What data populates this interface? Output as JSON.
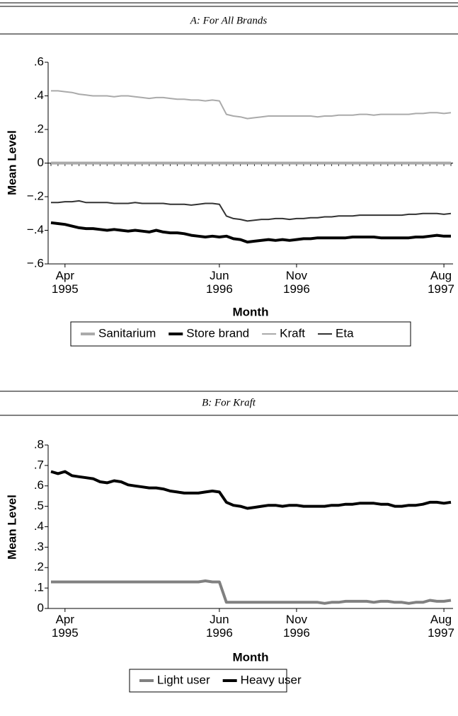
{
  "chart_data": [
    {
      "type": "line",
      "panel_title": "A: For All Brands",
      "y_label": "Mean Level",
      "x_label": "Month",
      "categories": [
        null,
        null,
        "Apr 1995",
        null,
        null,
        null,
        null,
        null,
        null,
        null,
        null,
        null,
        null,
        null,
        null,
        null,
        null,
        null,
        null,
        null,
        null,
        null,
        null,
        null,
        "Jun 1996",
        null,
        null,
        null,
        null,
        null,
        null,
        null,
        null,
        null,
        null,
        "Nov 1996",
        null,
        null,
        null,
        null,
        null,
        null,
        null,
        null,
        null,
        null,
        null,
        null,
        null,
        null,
        null,
        null,
        null,
        null,
        null,
        null,
        "Aug 1997",
        null
      ],
      "ylim": [
        -0.6,
        0.6
      ],
      "yticks": [
        {
          "value": 0.6,
          "label": ".6"
        },
        {
          "value": 0.4,
          "label": ".4"
        },
        {
          "value": 0.2,
          "label": ".2"
        },
        0,
        {
          "value": -0.2,
          "label": "−.2"
        },
        {
          "value": -0.4,
          "label": "−.4"
        },
        {
          "value": -0.6,
          "label": "−.6"
        }
      ],
      "series": [
        {
          "name": "Sanitarium",
          "color": "#aaaaaa",
          "line_width": 4,
          "values": [
            0,
            0,
            0,
            0,
            0,
            0,
            0,
            0,
            0,
            0,
            0,
            0,
            0,
            0,
            0,
            0,
            0,
            0,
            0,
            0,
            0,
            0,
            0,
            0,
            0,
            0,
            0,
            0,
            0,
            0,
            0,
            0,
            0,
            0,
            0,
            0,
            0,
            0,
            0,
            0,
            0,
            0,
            0,
            0,
            0,
            0,
            0,
            0,
            0,
            0,
            0,
            0,
            0,
            0,
            0,
            0,
            0,
            0
          ]
        },
        {
          "name": "Store brand",
          "color": "#000000",
          "line_width": 4,
          "values": [
            -0.355,
            -0.36,
            -0.365,
            -0.375,
            -0.385,
            -0.39,
            -0.39,
            -0.395,
            -0.4,
            -0.395,
            -0.4,
            -0.405,
            -0.4,
            -0.405,
            -0.41,
            -0.4,
            -0.41,
            -0.415,
            -0.415,
            -0.42,
            -0.43,
            -0.435,
            -0.44,
            -0.435,
            -0.44,
            -0.435,
            -0.45,
            -0.455,
            -0.47,
            -0.465,
            -0.46,
            -0.455,
            -0.46,
            -0.455,
            -0.46,
            -0.455,
            -0.45,
            -0.45,
            -0.445,
            -0.445,
            -0.445,
            -0.445,
            -0.445,
            -0.44,
            -0.44,
            -0.44,
            -0.44,
            -0.445,
            -0.445,
            -0.445,
            -0.445,
            -0.445,
            -0.44,
            -0.44,
            -0.435,
            -0.43,
            -0.435,
            -0.435
          ]
        },
        {
          "name": "Kraft",
          "color": "#aaaaaa",
          "line_width": 2,
          "values": [
            0.43,
            0.43,
            0.425,
            0.42,
            0.41,
            0.405,
            0.4,
            0.4,
            0.4,
            0.395,
            0.4,
            0.4,
            0.395,
            0.39,
            0.385,
            0.39,
            0.39,
            0.385,
            0.38,
            0.38,
            0.375,
            0.375,
            0.37,
            0.375,
            0.37,
            0.29,
            0.28,
            0.275,
            0.265,
            0.27,
            0.275,
            0.28,
            0.28,
            0.28,
            0.28,
            0.28,
            0.28,
            0.28,
            0.275,
            0.28,
            0.28,
            0.285,
            0.285,
            0.285,
            0.29,
            0.29,
            0.285,
            0.29,
            0.29,
            0.29,
            0.29,
            0.29,
            0.295,
            0.295,
            0.3,
            0.3,
            0.295,
            0.3
          ]
        },
        {
          "name": "Eta",
          "color": "#333333",
          "line_width": 2,
          "values": [
            -0.235,
            -0.235,
            -0.23,
            -0.23,
            -0.225,
            -0.235,
            -0.235,
            -0.235,
            -0.235,
            -0.24,
            -0.24,
            -0.24,
            -0.235,
            -0.24,
            -0.24,
            -0.24,
            -0.24,
            -0.245,
            -0.245,
            -0.245,
            -0.25,
            -0.245,
            -0.24,
            -0.24,
            -0.245,
            -0.315,
            -0.33,
            -0.335,
            -0.345,
            -0.34,
            -0.335,
            -0.335,
            -0.33,
            -0.33,
            -0.335,
            -0.33,
            -0.33,
            -0.325,
            -0.325,
            -0.32,
            -0.32,
            -0.315,
            -0.315,
            -0.315,
            -0.31,
            -0.31,
            -0.31,
            -0.31,
            -0.31,
            -0.31,
            -0.31,
            -0.305,
            -0.305,
            -0.3,
            -0.3,
            -0.3,
            -0.305,
            -0.3
          ]
        }
      ]
    },
    {
      "type": "line",
      "panel_title": "B: For Kraft",
      "y_label": "Mean Level",
      "x_label": "Month",
      "categories": [
        null,
        null,
        "Apr 1995",
        null,
        null,
        null,
        null,
        null,
        null,
        null,
        null,
        null,
        null,
        null,
        null,
        null,
        null,
        null,
        null,
        null,
        null,
        null,
        null,
        null,
        "Jun 1996",
        null,
        null,
        null,
        null,
        null,
        null,
        null,
        null,
        null,
        null,
        "Nov 1996",
        null,
        null,
        null,
        null,
        null,
        null,
        null,
        null,
        null,
        null,
        null,
        null,
        null,
        null,
        null,
        null,
        null,
        null,
        null,
        null,
        "Aug 1997",
        null
      ],
      "ylim": [
        0,
        0.8
      ],
      "yticks": [
        0,
        {
          "value": 0.1,
          "label": ".1"
        },
        {
          "value": 0.2,
          "label": ".2"
        },
        {
          "value": 0.3,
          "label": ".3"
        },
        {
          "value": 0.4,
          "label": ".4"
        },
        {
          "value": 0.5,
          "label": ".5"
        },
        {
          "value": 0.6,
          "label": ".6"
        },
        {
          "value": 0.7,
          "label": ".7"
        },
        {
          "value": 0.8,
          "label": ".8"
        }
      ],
      "series": [
        {
          "name": "Light user",
          "color": "#808080",
          "line_width": 4,
          "values": [
            0.13,
            0.13,
            0.13,
            0.13,
            0.13,
            0.13,
            0.13,
            0.13,
            0.13,
            0.13,
            0.13,
            0.13,
            0.13,
            0.13,
            0.13,
            0.13,
            0.13,
            0.13,
            0.13,
            0.13,
            0.13,
            0.13,
            0.135,
            0.13,
            0.13,
            0.03,
            0.03,
            0.03,
            0.03,
            0.03,
            0.03,
            0.03,
            0.03,
            0.03,
            0.03,
            0.03,
            0.03,
            0.03,
            0.03,
            0.025,
            0.03,
            0.03,
            0.035,
            0.035,
            0.035,
            0.035,
            0.03,
            0.035,
            0.035,
            0.03,
            0.03,
            0.025,
            0.03,
            0.03,
            0.04,
            0.035,
            0.035,
            0.04
          ]
        },
        {
          "name": "Heavy user",
          "color": "#000000",
          "line_width": 4,
          "values": [
            0.67,
            0.66,
            0.67,
            0.65,
            0.645,
            0.64,
            0.635,
            0.62,
            0.615,
            0.625,
            0.62,
            0.605,
            0.6,
            0.595,
            0.59,
            0.59,
            0.585,
            0.575,
            0.57,
            0.565,
            0.565,
            0.565,
            0.57,
            0.575,
            0.57,
            0.52,
            0.505,
            0.5,
            0.49,
            0.495,
            0.5,
            0.505,
            0.505,
            0.5,
            0.505,
            0.505,
            0.5,
            0.5,
            0.5,
            0.5,
            0.505,
            0.505,
            0.51,
            0.51,
            0.515,
            0.515,
            0.515,
            0.51,
            0.51,
            0.5,
            0.5,
            0.505,
            0.505,
            0.51,
            0.52,
            0.52,
            0.515,
            0.52
          ]
        }
      ]
    }
  ]
}
